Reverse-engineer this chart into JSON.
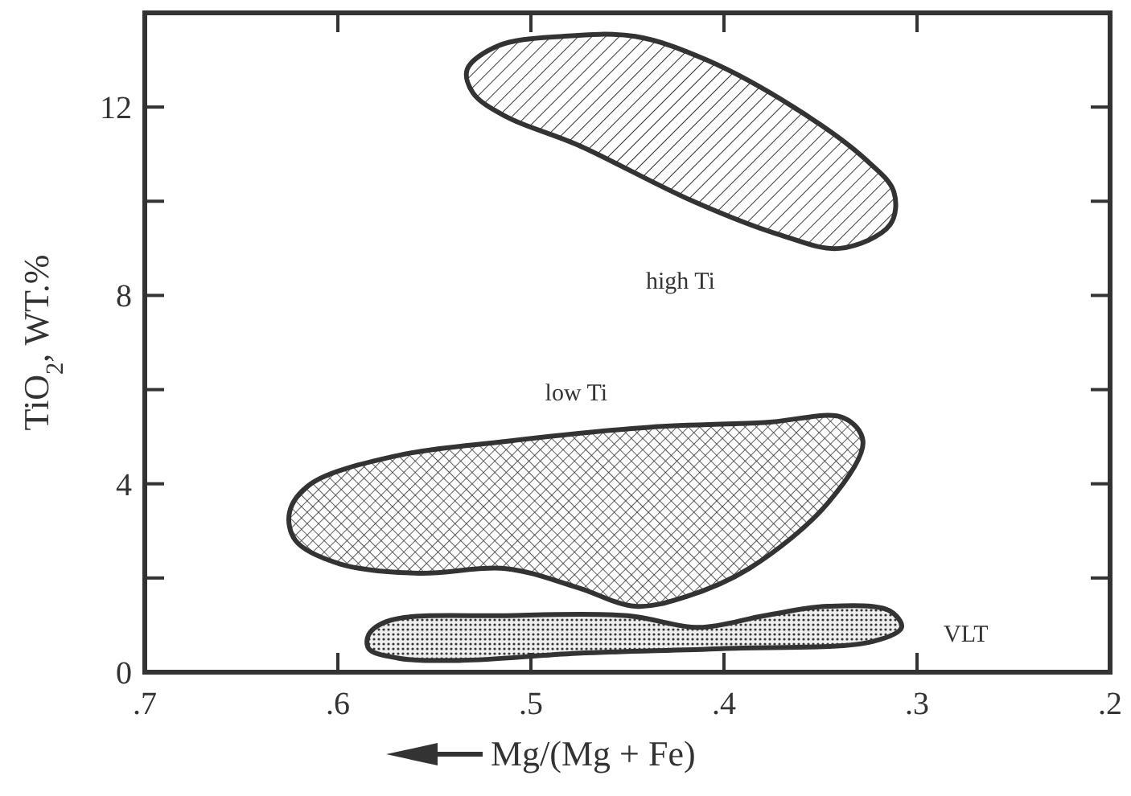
{
  "chart_data": {
    "type": "area",
    "xlabel": "Mg/(Mg + Fe)",
    "ylabel": "TiO$_{2}$, WT.%",
    "xlim": [
      0.7,
      0.2
    ],
    "xticks": [
      {
        "value": 0.7,
        "label": ".7"
      },
      {
        "value": 0.6,
        "label": ".6"
      },
      {
        "value": 0.5,
        "label": ".5"
      },
      {
        "value": 0.4,
        "label": ".4"
      },
      {
        "value": 0.3,
        "label": ".3"
      },
      {
        "value": 0.2,
        "label": ".2"
      }
    ],
    "ylim": [
      0,
      14
    ],
    "yticks": [
      0,
      {
        "value": 2,
        "label": null
      },
      4,
      {
        "value": 6,
        "label": null
      },
      8,
      {
        "value": 10,
        "label": null
      },
      12
    ],
    "grid": false,
    "marker": "none",
    "series": [
      {
        "name": "high Ti",
        "color": "#333333",
        "x": [
          0.533,
          0.517,
          0.484,
          0.446,
          0.409,
          0.364,
          0.327,
          0.312,
          0.314,
          0.34,
          0.372,
          0.416,
          0.476,
          0.513,
          0.53
        ],
        "values": [
          12.8,
          13.3,
          13.5,
          13.5,
          13.0,
          12.0,
          10.9,
          10.2,
          9.5,
          9.0,
          9.3,
          10.0,
          11.2,
          11.8,
          12.3
        ]
      },
      {
        "name": "low Ti",
        "color": "#333333",
        "x": [
          0.625,
          0.614,
          0.569,
          0.513,
          0.439,
          0.379,
          0.338,
          0.328,
          0.346,
          0.387,
          0.42,
          0.446,
          0.476,
          0.513,
          0.558,
          0.599,
          0.622
        ],
        "values": [
          3.4,
          4.0,
          4.6,
          4.9,
          5.2,
          5.3,
          5.4,
          4.9,
          3.6,
          2.2,
          1.6,
          1.4,
          1.8,
          2.2,
          2.1,
          2.3,
          2.8
        ]
      },
      {
        "name": "VLT",
        "color": "#333333",
        "x": [
          0.584,
          0.573,
          0.513,
          0.45,
          0.413,
          0.379,
          0.346,
          0.314,
          0.308,
          0.323,
          0.401,
          0.476,
          0.536,
          0.569,
          0.584
        ],
        "values": [
          0.8,
          1.1,
          1.2,
          1.2,
          0.95,
          1.2,
          1.4,
          1.3,
          0.95,
          0.65,
          0.5,
          0.4,
          0.25,
          0.3,
          0.5
        ]
      }
    ]
  }
}
